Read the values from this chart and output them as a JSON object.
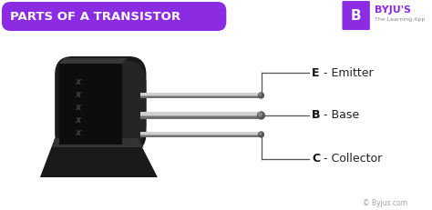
{
  "title": "PARTS OF A TRANSISTOR",
  "title_bg_color": "#8B2BE2",
  "title_text_color": "#FFFFFF",
  "background_color": "#FFFFFF",
  "body_color": "#1a1a1a",
  "body_dark": "#111111",
  "body_mid": "#2a2a2a",
  "pin_light": "#D0D0D0",
  "pin_mid": "#A0A0A0",
  "pin_dark": "#707070",
  "label_E": "E  - Emitter",
  "label_B": "B  - Base",
  "label_C": "C  - Collector",
  "label_color": "#222222",
  "label_bold_color": "#111111",
  "watermark": "© Byjus.com",
  "watermark_color": "#999999",
  "byju_text": "BYJU'S",
  "byju_sub": "The Learning App",
  "byju_color": "#8B2BE2",
  "cross_text": "xxxxx",
  "cross_color": "#3a3a3a",
  "line_color": "#555555"
}
